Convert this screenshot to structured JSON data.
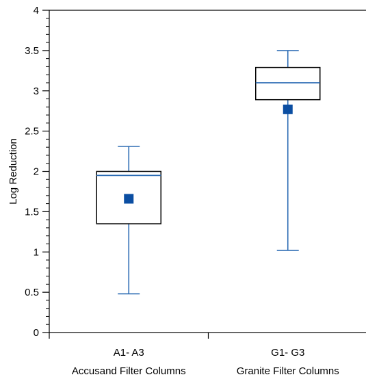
{
  "chart_data": {
    "type": "box",
    "title": "",
    "xlabel": "",
    "ylabel": "Log Reduction",
    "ylim": [
      0,
      4
    ],
    "yticks": [
      "0",
      "0.5",
      "1",
      "1.5",
      "2",
      "2.5",
      "3",
      "3.5",
      "4"
    ],
    "grid": false,
    "categories": [
      {
        "code": "A1- A3",
        "label": "Accusand Filter Columns"
      },
      {
        "code": "G1- G3",
        "label": "Granite Filter Columns"
      }
    ],
    "boxes": [
      {
        "min": 0.48,
        "q1": 1.35,
        "median": 1.95,
        "q3": 2.0,
        "max": 2.31,
        "mean": 1.66
      },
      {
        "min": 1.02,
        "q1": 2.89,
        "median": 3.1,
        "q3": 3.29,
        "max": 3.5,
        "mean": 2.77
      }
    ],
    "colors": {
      "whisker": "#2e6db4",
      "median": "#2e6db4",
      "mean_marker": "#0b4ea2",
      "box_edge": "#000000"
    }
  }
}
